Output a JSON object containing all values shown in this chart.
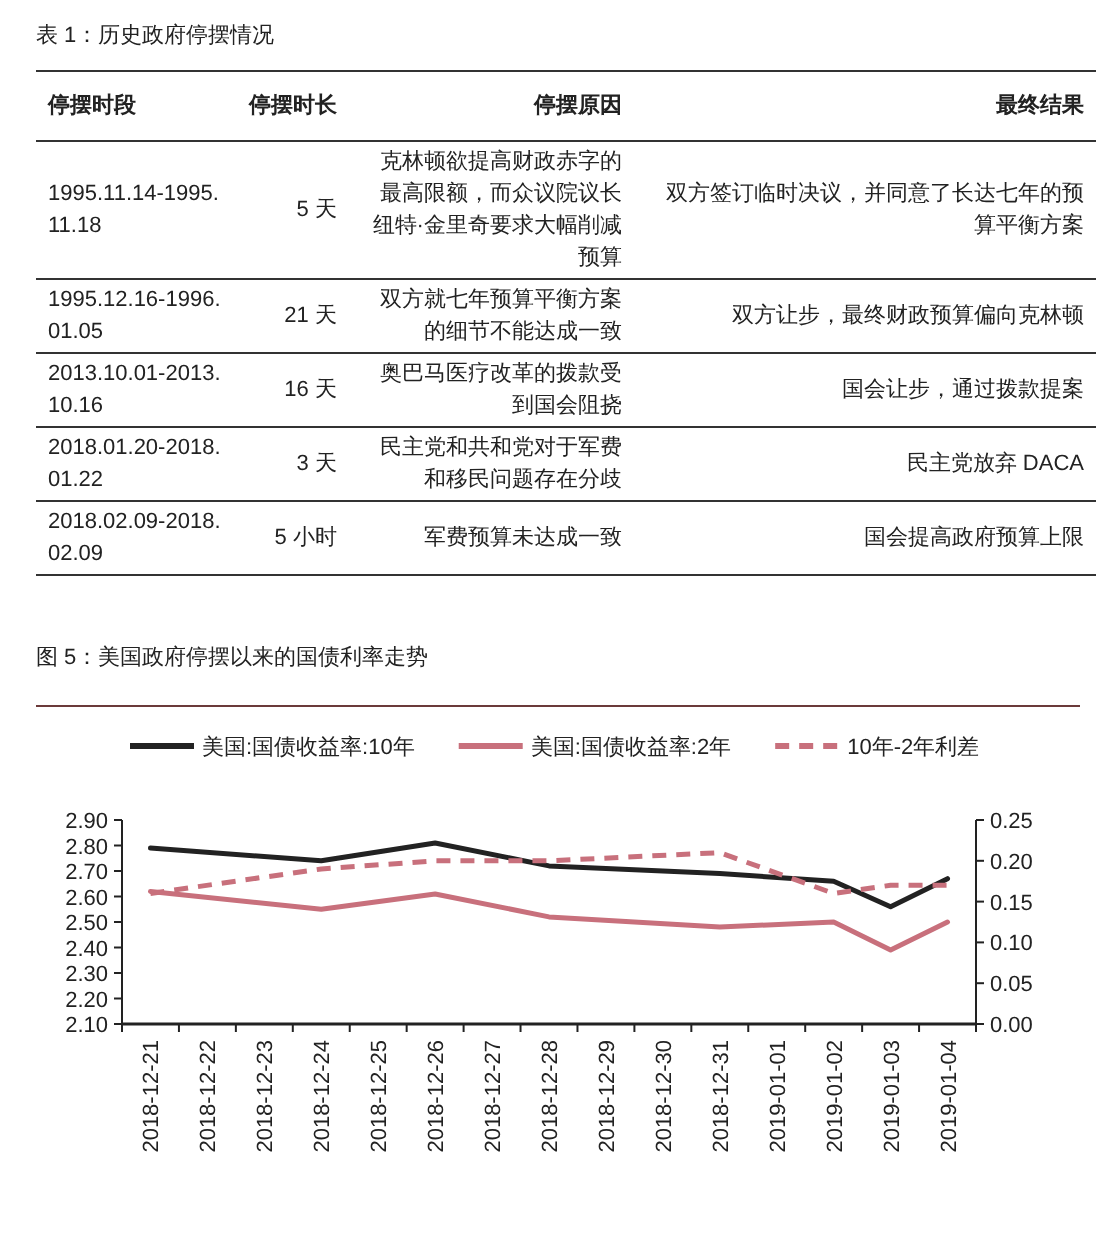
{
  "chart_data": [
    {
      "type": "other",
      "title": "表 1：历史政府停摆情况",
      "annotations": [
        "停摆时段",
        "停摆时长",
        "停摆原因",
        "最终结果",
        "1995.11.14-1995.11.18",
        "5 天",
        "克林顿欲提高财政赤字的最高限额，而众议院议长纽特·金里奇要求大幅削减预算",
        "双方签订临时决议，并同意了长达七年的预算平衡方案",
        "1995.12.16-1996.01.05",
        "21 天",
        "双方就七年预算平衡方案的细节不能达成一致",
        "双方让步，最终财政预算偏向克林顿",
        "2013.10.01-2013.10.16",
        "16 天",
        "奥巴马医疗改革的拨款受到国会阻挠",
        "国会让步，通过拨款提案",
        "2018.01.20-2018.01.22",
        "3 天",
        "民主党和共和党对于军费和移民问题存在分歧",
        "民主党放弃 DACA",
        "2018.02.09-2018.02.09",
        "5 小时",
        "军费预算未达成一致",
        "国会提高政府预算上限"
      ]
    },
    {
      "type": "line",
      "title": "图 5：美国政府停摆以来的国债利率走势",
      "categories": [
        "2018-12-21",
        "2018-12-22",
        "2018-12-23",
        "2018-12-24",
        "2018-12-25",
        "2018-12-26",
        "2018-12-27",
        "2018-12-28",
        "2018-12-29",
        "2018-12-30",
        "2018-12-31",
        "2019-01-01",
        "2019-01-02",
        "2019-01-03",
        "2019-01-04"
      ],
      "series": [
        {
          "name": "美国:国债收益率:10年",
          "color": "#222222",
          "line_style": "solid",
          "values": [
            2.79,
            null,
            null,
            2.74,
            null,
            2.81,
            null,
            2.72,
            null,
            null,
            2.69,
            null,
            2.66,
            2.56,
            2.67
          ]
        },
        {
          "name": "美国:国债收益率:2年",
          "color": "#c8707c",
          "line_style": "solid",
          "values": [
            2.62,
            null,
            null,
            2.55,
            null,
            2.61,
            null,
            2.52,
            null,
            null,
            2.48,
            null,
            2.5,
            2.39,
            2.5
          ]
        },
        {
          "name": "10年-2年利差",
          "color": "#c8707c",
          "line_style": "dashed",
          "axis": "y2",
          "values": [
            0.16,
            null,
            null,
            0.19,
            null,
            0.2,
            null,
            0.2,
            null,
            null,
            0.21,
            null,
            0.16,
            0.17,
            0.17
          ]
        }
      ],
      "ylim": [
        2.1,
        2.9
      ],
      "yticks": [
        {
          "value": 2.1,
          "label": "2.10"
        },
        {
          "value": 2.2,
          "label": "2.20"
        },
        {
          "value": 2.3,
          "label": "2.30"
        },
        {
          "value": 2.4,
          "label": "2.40"
        },
        {
          "value": 2.5,
          "label": "2.50"
        },
        {
          "value": 2.6,
          "label": "2.60"
        },
        {
          "value": 2.7,
          "label": "2.70"
        },
        {
          "value": 2.8,
          "label": "2.80"
        },
        {
          "value": 2.9,
          "label": "2.90"
        }
      ],
      "y2lim": [
        0,
        0.25
      ],
      "y2ticks": [
        {
          "value": 0,
          "label": "0.00"
        },
        {
          "value": 0.05,
          "label": "0.05"
        },
        {
          "value": 0.1,
          "label": "0.10"
        },
        {
          "value": 0.15,
          "label": "0.15"
        },
        {
          "value": 0.2,
          "label": "0.20"
        },
        {
          "value": 0.25,
          "label": "0.25"
        }
      ],
      "legend": "top",
      "grid": false,
      "marker": "none"
    }
  ]
}
